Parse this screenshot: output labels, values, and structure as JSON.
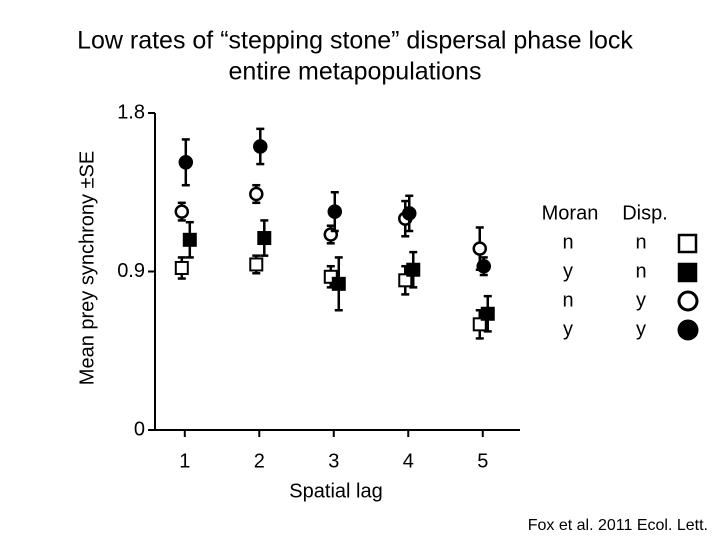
{
  "chart_data": {
    "type": "scatter",
    "title": [
      "Low rates of “stepping stone” dispersal phase lock",
      "entire metapopulations"
    ],
    "x_label": "Spatial lag",
    "y_label": "Mean prey synchrony ±SE",
    "xlim": [
      0.6,
      5.5
    ],
    "xticks": [
      1,
      2,
      3,
      4,
      5
    ],
    "ylim": [
      0,
      1.8
    ],
    "yticks": [
      0,
      0.9,
      1.8
    ],
    "legend_headers": [
      "Moran",
      "Disp."
    ],
    "x": [
      1,
      2,
      3,
      4,
      5
    ],
    "series": [
      {
        "moran": "n",
        "disp": "n",
        "marker": "square",
        "filled": false,
        "color": "#000000",
        "values": [
          0.92,
          0.94,
          0.87,
          0.85,
          0.6
        ],
        "errors": [
          0.06,
          0.05,
          0.06,
          0.08,
          0.08
        ]
      },
      {
        "moran": "y",
        "disp": "n",
        "marker": "square",
        "filled": true,
        "color": "#000000",
        "values": [
          1.08,
          1.09,
          0.83,
          0.91,
          0.66
        ],
        "errors": [
          0.1,
          0.1,
          0.15,
          0.1,
          0.1
        ]
      },
      {
        "moran": "n",
        "disp": "y",
        "marker": "circle",
        "filled": false,
        "color": "#000000",
        "values": [
          1.24,
          1.34,
          1.11,
          1.2,
          1.03
        ],
        "errors": [
          0.05,
          0.05,
          0.05,
          0.1,
          0.12
        ]
      },
      {
        "moran": "y",
        "disp": "y",
        "marker": "circle",
        "filled": true,
        "color": "#000000",
        "values": [
          1.52,
          1.61,
          1.24,
          1.23,
          0.93
        ],
        "errors": [
          0.13,
          0.1,
          0.11,
          0.1,
          0.05
        ]
      }
    ],
    "source": "Fox et al. 2011 Ecol. Lett."
  }
}
